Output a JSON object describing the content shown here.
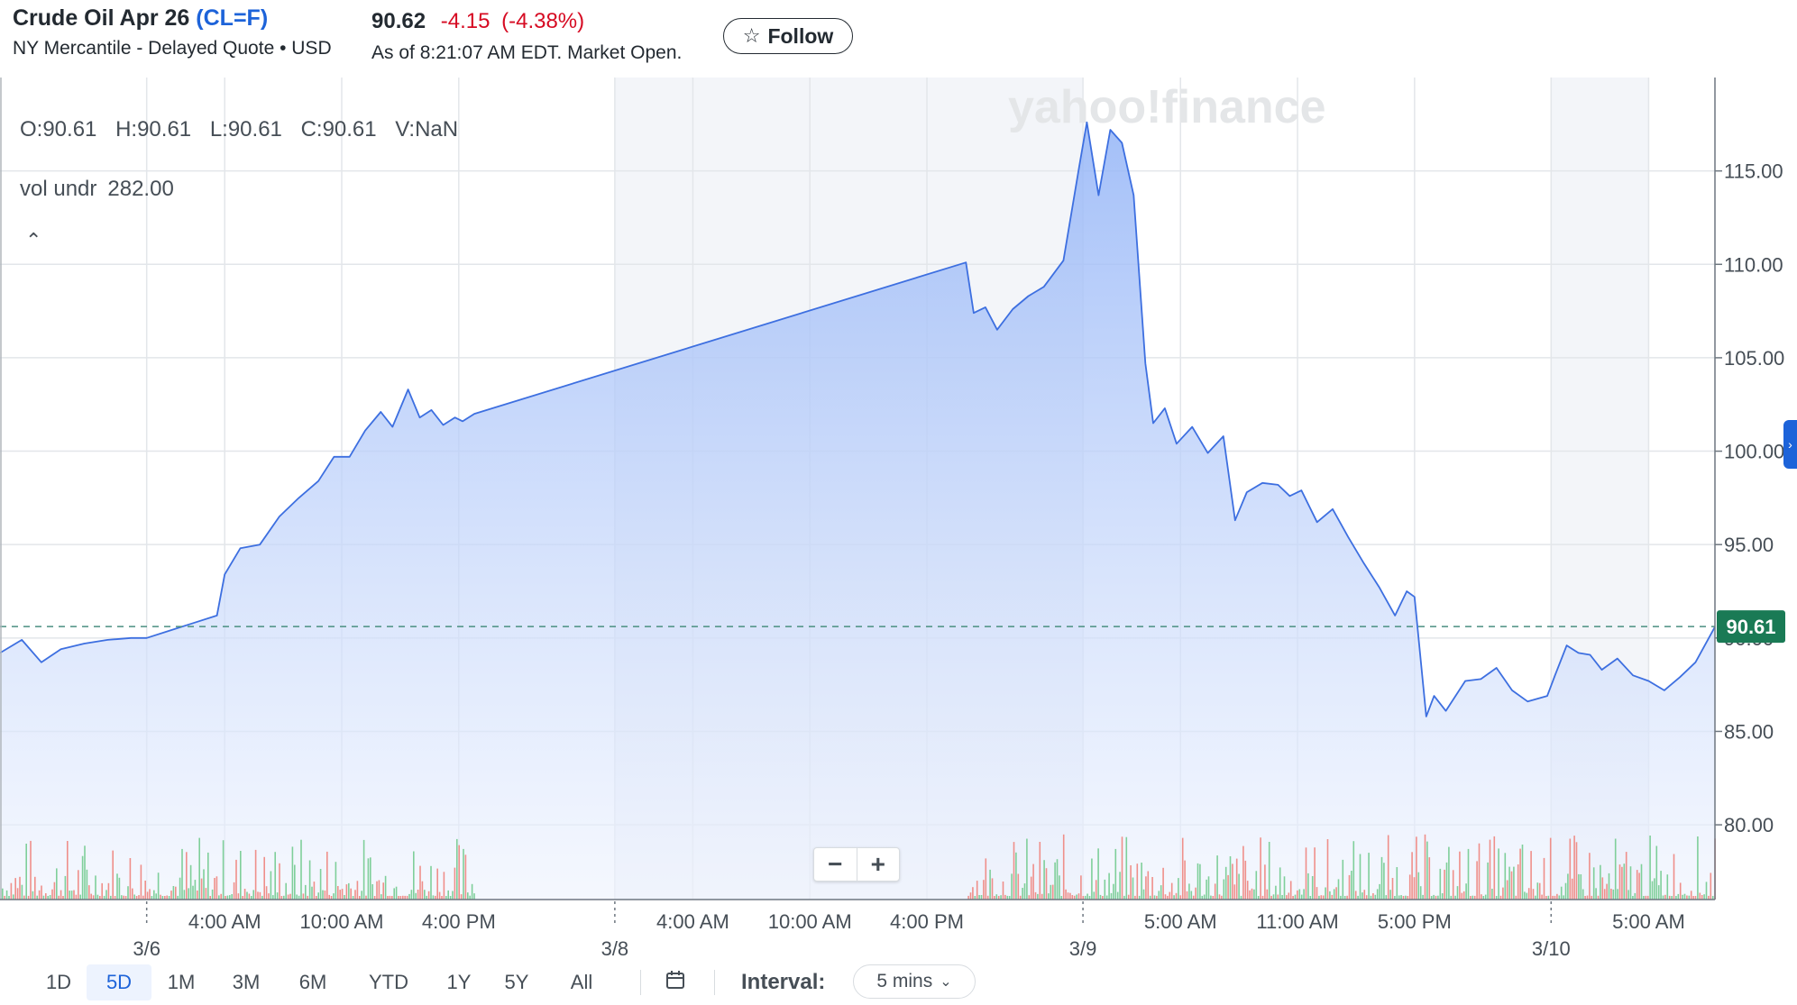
{
  "header": {
    "name": "Crude Oil Apr 26",
    "symbol": "(CL=F)",
    "subtitle": "NY Mercantile - Delayed Quote • USD",
    "price": "90.62",
    "change": "-4.15",
    "change_pct": "(-4.38%)",
    "as_of": "As of 8:21:07 AM EDT. Market Open.",
    "follow_label": "Follow",
    "follow_icon": "star-outline-icon"
  },
  "legend": {
    "o": "O:90.61",
    "h": "H:90.61",
    "l": "L:90.61",
    "c": "C:90.61",
    "v": "V:NaN",
    "vol_label": "vol undr",
    "vol_value": "282.00",
    "collapse_icon": "chevron-up-icon"
  },
  "watermark": "yahoo!finance",
  "current_price_label": "90.61",
  "zoom": {
    "minus": "−",
    "plus": "+"
  },
  "colors": {
    "line": "#3d6fe0",
    "area_top": "#93b4f7",
    "area_bottom": "#eef3fe",
    "up_volume": "#7fcf9a",
    "down_volume": "#ef8f8a",
    "price_tag": "#1a7a55",
    "dash": "#4a8f80"
  },
  "chart_data": {
    "type": "area",
    "y_ticks": [
      "115.00",
      "110.00",
      "105.00",
      "100.00",
      "95.00",
      "90.00",
      "85.00",
      "80.00"
    ],
    "ylim": [
      76,
      120
    ],
    "x_tick_labels": [
      {
        "label": "4:00 AM",
        "t": 1
      },
      {
        "label": "10:00 AM",
        "t": 2.5
      },
      {
        "label": "4:00 PM",
        "t": 4
      },
      {
        "label": "4:00 AM",
        "t": 7
      },
      {
        "label": "10:00 AM",
        "t": 8.5
      },
      {
        "label": "4:00 PM",
        "t": 10
      },
      {
        "label": "5:00 AM",
        "t": 13.25
      },
      {
        "label": "11:00 AM",
        "t": 14.75
      },
      {
        "label": "5:00 PM",
        "t": 16.25
      },
      {
        "label": "5:00 AM",
        "t": 19.25
      }
    ],
    "date_labels": [
      {
        "label": "3/6",
        "t": 0
      },
      {
        "label": "3/8",
        "t": 6
      },
      {
        "label": "3/9",
        "t": 12
      },
      {
        "label": "3/10",
        "t": 18
      }
    ],
    "shaded_ranges": [
      [
        6,
        12
      ],
      [
        18,
        19.25
      ]
    ],
    "xlim": [
      -1.88,
      20.1
    ],
    "series": [
      {
        "points": [
          [
            -1.88,
            89.2
          ],
          [
            -1.6,
            89.9
          ],
          [
            -1.35,
            88.7
          ],
          [
            -1.1,
            89.4
          ],
          [
            -0.8,
            89.7
          ],
          [
            -0.5,
            89.9
          ],
          [
            -0.2,
            90.0
          ],
          [
            0,
            90.0
          ],
          [
            0.3,
            90.4
          ],
          [
            0.6,
            90.8
          ],
          [
            0.9,
            91.2
          ],
          [
            1.0,
            93.4
          ],
          [
            1.2,
            94.8
          ],
          [
            1.45,
            95.0
          ],
          [
            1.7,
            96.5
          ],
          [
            1.95,
            97.5
          ],
          [
            2.2,
            98.4
          ],
          [
            2.4,
            99.7
          ],
          [
            2.6,
            99.7
          ],
          [
            2.8,
            101.1
          ],
          [
            3.0,
            102.1
          ],
          [
            3.15,
            101.3
          ],
          [
            3.35,
            103.3
          ],
          [
            3.5,
            101.8
          ],
          [
            3.65,
            102.2
          ],
          [
            3.8,
            101.4
          ],
          [
            3.95,
            101.8
          ],
          [
            4.05,
            101.6
          ],
          [
            4.2,
            102.0
          ],
          [
            10.5,
            110.1
          ],
          [
            10.6,
            107.4
          ],
          [
            10.75,
            107.7
          ],
          [
            10.9,
            106.5
          ],
          [
            11.1,
            107.6
          ],
          [
            11.3,
            108.3
          ],
          [
            11.5,
            108.8
          ],
          [
            11.75,
            110.2
          ],
          [
            11.95,
            115.2
          ],
          [
            12.05,
            117.6
          ],
          [
            12.2,
            113.7
          ],
          [
            12.35,
            117.2
          ],
          [
            12.5,
            116.5
          ],
          [
            12.65,
            113.7
          ],
          [
            12.8,
            104.7
          ],
          [
            12.9,
            101.5
          ],
          [
            13.05,
            102.3
          ],
          [
            13.2,
            100.4
          ],
          [
            13.4,
            101.3
          ],
          [
            13.6,
            99.9
          ],
          [
            13.8,
            100.8
          ],
          [
            13.95,
            96.3
          ],
          [
            14.1,
            97.8
          ],
          [
            14.3,
            98.3
          ],
          [
            14.5,
            98.2
          ],
          [
            14.65,
            97.6
          ],
          [
            14.8,
            97.9
          ],
          [
            15.0,
            96.2
          ],
          [
            15.2,
            96.9
          ],
          [
            15.4,
            95.4
          ],
          [
            15.6,
            94.0
          ],
          [
            15.8,
            92.7
          ],
          [
            16.0,
            91.2
          ],
          [
            16.15,
            92.5
          ],
          [
            16.25,
            92.2
          ],
          [
            16.4,
            85.8
          ],
          [
            16.5,
            86.9
          ],
          [
            16.65,
            86.1
          ],
          [
            16.9,
            87.7
          ],
          [
            17.1,
            87.8
          ],
          [
            17.3,
            88.4
          ],
          [
            17.5,
            87.2
          ],
          [
            17.7,
            86.6
          ],
          [
            17.95,
            86.9
          ],
          [
            18.05,
            88.0
          ],
          [
            18.2,
            89.6
          ],
          [
            18.35,
            89.2
          ],
          [
            18.5,
            89.1
          ],
          [
            18.65,
            88.3
          ],
          [
            18.85,
            88.9
          ],
          [
            19.05,
            88.0
          ],
          [
            19.25,
            87.7
          ],
          [
            19.45,
            87.2
          ],
          [
            19.65,
            87.9
          ],
          [
            19.85,
            88.7
          ],
          [
            20.1,
            90.6
          ]
        ]
      }
    ],
    "last_price": 90.61,
    "volume_ranges": [
      [
        -1.88,
        4.2
      ],
      [
        10.5,
        20.1
      ]
    ]
  },
  "footer": {
    "ranges": [
      "1D",
      "5D",
      "1M",
      "3M",
      "6M",
      "YTD",
      "1Y",
      "5Y",
      "All"
    ],
    "active_range": "5D",
    "calendar_icon": "calendar-icon",
    "interval_label": "Interval:",
    "interval_value": "5 mins",
    "interval_chevron": "chevron-down-icon"
  }
}
